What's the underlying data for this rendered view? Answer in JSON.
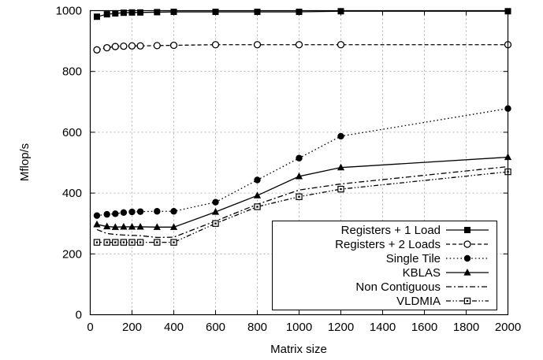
{
  "chart_data": {
    "type": "line",
    "xlabel": "Matrix size",
    "ylabel": "Mflop/s",
    "xlim": [
      0,
      2000
    ],
    "ylim": [
      0,
      1000
    ],
    "xticks": [
      "0",
      "200",
      "400",
      "600",
      "800",
      "1000",
      "1200",
      "1400",
      "1600",
      "1800",
      "2000"
    ],
    "yticks": [
      "0",
      "200",
      "400",
      "600",
      "800",
      "1000"
    ],
    "grid": true,
    "legend_position": "bottom-right",
    "series": [
      {
        "name": "Registers + 1 Load",
        "dash": "solid",
        "marker": "square-filled",
        "x": [
          32,
          80,
          120,
          160,
          200,
          240,
          320,
          400,
          600,
          800,
          1000,
          1200,
          2000
        ],
        "y": [
          980,
          988,
          991,
          993,
          994,
          994,
          995,
          996,
          996,
          996,
          996,
          998,
          998
        ]
      },
      {
        "name": "Registers + 2 Loads",
        "dash": "dashed",
        "marker": "circle-open",
        "x": [
          32,
          80,
          120,
          160,
          200,
          240,
          320,
          400,
          600,
          800,
          1000,
          1200,
          2000
        ],
        "y": [
          871,
          878,
          882,
          883,
          884,
          884,
          885,
          886,
          888,
          888,
          888,
          888,
          888
        ]
      },
      {
        "name": "Single Tile",
        "dash": "dotted",
        "marker": "circle-filled",
        "x": [
          32,
          80,
          120,
          160,
          200,
          240,
          320,
          400,
          600,
          800,
          1000,
          1200,
          2000
        ],
        "y": [
          326,
          330,
          332,
          336,
          338,
          339,
          340,
          340,
          370,
          443,
          515,
          587,
          678
        ]
      },
      {
        "name": "KBLAS",
        "dash": "solid",
        "marker": "triangle-filled",
        "x": [
          32,
          80,
          120,
          160,
          200,
          240,
          320,
          400,
          600,
          800,
          1000,
          1200,
          2000
        ],
        "y": [
          297,
          290,
          288,
          289,
          289,
          289,
          288,
          288,
          338,
          392,
          455,
          484,
          518
        ]
      },
      {
        "name": "Non Contiguous",
        "dash": "dashdot",
        "marker": "none",
        "x": [
          32,
          80,
          120,
          160,
          200,
          240,
          320,
          400,
          600,
          800,
          1000,
          1200,
          2000
        ],
        "y": [
          280,
          267,
          264,
          262,
          261,
          260,
          254,
          255,
          308,
          363,
          410,
          430,
          487
        ]
      },
      {
        "name": "VLDMIA",
        "dash": "dashdotdot",
        "marker": "square-open",
        "x": [
          32,
          80,
          120,
          160,
          200,
          240,
          320,
          400,
          600,
          800,
          1000,
          1200,
          2000
        ],
        "y": [
          238,
          238,
          238,
          238,
          238,
          238,
          238,
          238,
          300,
          355,
          388,
          413,
          470
        ]
      }
    ]
  }
}
